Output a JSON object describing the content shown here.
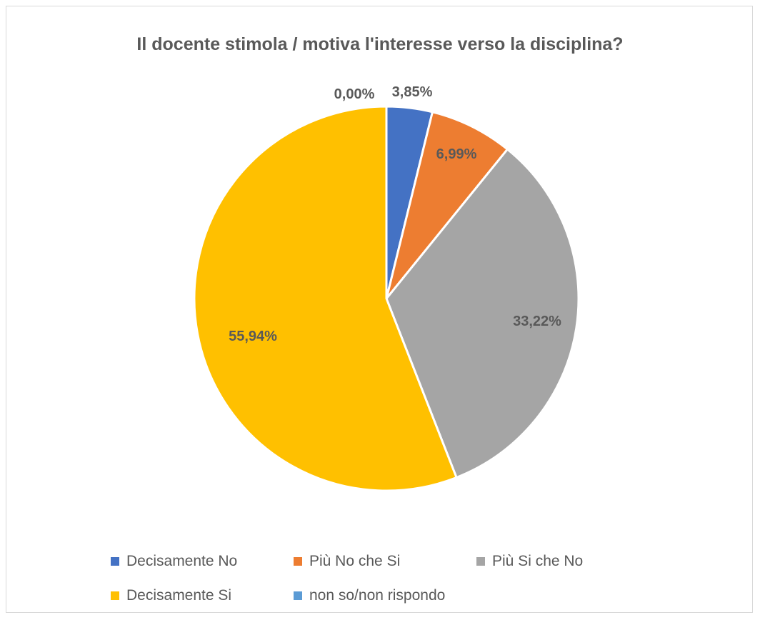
{
  "chart_data": {
    "type": "pie",
    "title": "Il docente stimola / motiva l'interesse verso la disciplina?",
    "categories": [
      "Decisamente No",
      "Più No che Si",
      "Più Si che No",
      "Decisamente Si",
      "non so/non rispondo"
    ],
    "values": [
      3.85,
      6.99,
      33.22,
      55.94,
      0.0
    ],
    "data_labels": [
      "3,85%",
      "6,99%",
      "33,22%",
      "55,94%",
      "0,00%"
    ],
    "colors": [
      "#4472c4",
      "#ed7d31",
      "#a5a5a5",
      "#ffc000",
      "#5b9bd5"
    ],
    "legend_position": "bottom"
  }
}
